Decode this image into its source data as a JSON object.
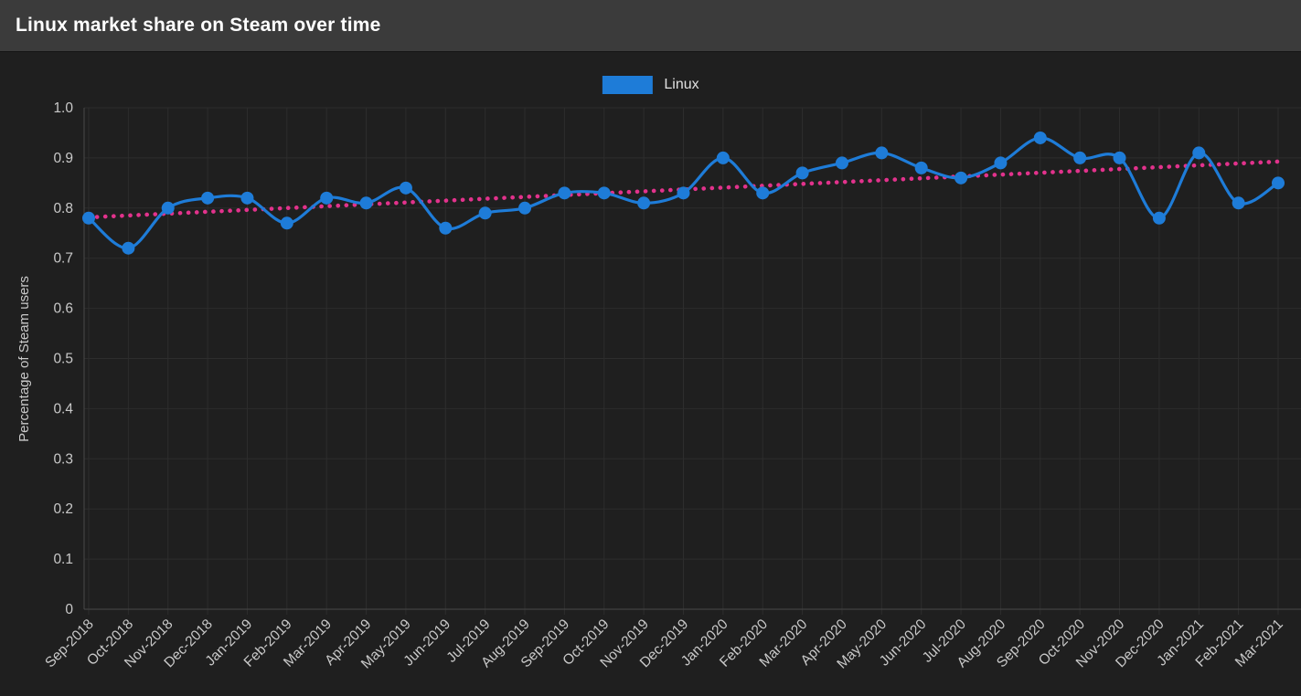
{
  "header": {
    "title": "Linux market share on Steam over time"
  },
  "chart_data": {
    "type": "line",
    "title": "Linux market share on Steam over time",
    "xlabel": "",
    "ylabel": "Percentage of Steam users",
    "ylim": [
      0,
      1.0
    ],
    "y_tick_labels": [
      "0",
      "0.1",
      "0.2",
      "0.3",
      "0.4",
      "0.5",
      "0.6",
      "0.7",
      "0.8",
      "0.9",
      "1.0"
    ],
    "grid": true,
    "legend_position": "top-center",
    "categories": [
      "Sep-2018",
      "Oct-2018",
      "Nov-2018",
      "Dec-2018",
      "Jan-2019",
      "Feb-2019",
      "Mar-2019",
      "Apr-2019",
      "May-2019",
      "Jun-2019",
      "Jul-2019",
      "Aug-2019",
      "Sep-2019",
      "Oct-2019",
      "Nov-2019",
      "Dec-2019",
      "Jan-2020",
      "Feb-2020",
      "Mar-2020",
      "Apr-2020",
      "May-2020",
      "Jun-2020",
      "Jul-2020",
      "Aug-2020",
      "Sep-2020",
      "Oct-2020",
      "Nov-2020",
      "Dec-2020",
      "Jan-2021",
      "Feb-2021",
      "Mar-2021"
    ],
    "series": [
      {
        "name": "Linux",
        "color": "#1e7cd8",
        "marker": "circle",
        "values": [
          0.78,
          0.72,
          0.8,
          0.82,
          0.82,
          0.77,
          0.82,
          0.81,
          0.84,
          0.76,
          0.79,
          0.8,
          0.83,
          0.83,
          0.81,
          0.83,
          0.9,
          0.83,
          0.87,
          0.89,
          0.91,
          0.88,
          0.86,
          0.89,
          0.94,
          0.9,
          0.9,
          0.78,
          0.91,
          0.81,
          0.85
        ]
      }
    ],
    "trend_line": {
      "type": "linear_regression",
      "style": "dotted",
      "color": "#e2328c",
      "start_value": 0.78,
      "end_value": 0.89
    }
  },
  "theme": {
    "header_bg": "#3b3b3b",
    "chart_bg": "#1f1f1f",
    "grid_color": "#2d2d2d",
    "axis_color": "#484848",
    "tick_color": "#c9c9c9",
    "title_color": "#ffffff",
    "legend_text_color": "#e0e0e0"
  }
}
